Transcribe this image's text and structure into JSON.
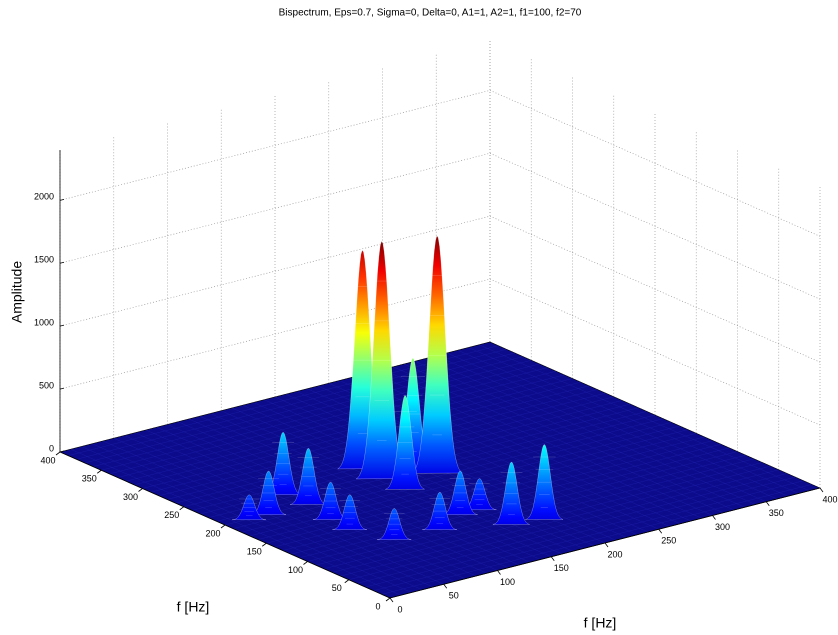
{
  "chart_data": {
    "type": "surface",
    "title": "Bispectrum, Eps=0.7, Sigma=0, Delta=0, A1=1, A2=1, f1=100, f2=70",
    "xlabel": "f [Hz]",
    "ylabel": "f [Hz]",
    "zlabel": "Amplitude",
    "xlim": [
      0,
      400
    ],
    "ylim": [
      0,
      400
    ],
    "zlim": [
      0,
      2400
    ],
    "xticks": [
      0,
      50,
      100,
      150,
      200,
      250,
      300,
      350,
      400
    ],
    "yticks": [
      0,
      50,
      100,
      150,
      200,
      250,
      300,
      350,
      400
    ],
    "zticks": [
      0,
      500,
      1000,
      1500,
      2000
    ],
    "grid": true,
    "colormap": "jet",
    "color": "#0b0b8c",
    "peaks": [
      {
        "x": 154,
        "y": 234,
        "z": 1750
      },
      {
        "x": 152,
        "y": 208,
        "z": 1900
      },
      {
        "x": 192,
        "y": 193,
        "z": 1900
      },
      {
        "x": 184,
        "y": 212,
        "z": 890
      },
      {
        "x": 153,
        "y": 181,
        "z": 750
      },
      {
        "x": 74,
        "y": 226,
        "z": 500
      },
      {
        "x": 76,
        "y": 198,
        "z": 450
      },
      {
        "x": 39,
        "y": 198,
        "z": 350
      },
      {
        "x": 21,
        "y": 198,
        "z": 200
      },
      {
        "x": 195,
        "y": 67,
        "z": 600
      },
      {
        "x": 169,
        "y": 73,
        "z": 500
      },
      {
        "x": 170,
        "y": 113,
        "z": 250
      },
      {
        "x": 152,
        "y": 113,
        "z": 350
      },
      {
        "x": 69,
        "y": 162,
        "z": 300
      },
      {
        "x": 67,
        "y": 136,
        "z": 280
      },
      {
        "x": 120,
        "y": 96,
        "z": 300
      },
      {
        "x": 80,
        "y": 99,
        "z": 250
      }
    ]
  }
}
